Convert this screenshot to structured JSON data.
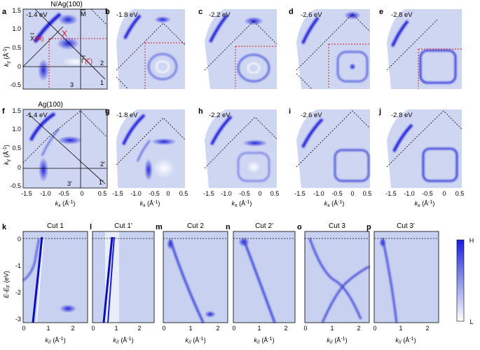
{
  "figure": {
    "row1_title": "N/Ag(100)",
    "row2_title": "Ag(100)",
    "row1": [
      {
        "label": "a",
        "energy": "-1.4 eV"
      },
      {
        "label": "b",
        "energy": "-1.8 eV"
      },
      {
        "label": "c",
        "energy": "-2.2 eV"
      },
      {
        "label": "d",
        "energy": "-2.6 eV"
      },
      {
        "label": "e",
        "energy": "-2.8 eV"
      }
    ],
    "row2": [
      {
        "label": "f",
        "energy": "-1.4 eV"
      },
      {
        "label": "g",
        "energy": "-1.8 eV"
      },
      {
        "label": "h",
        "energy": "-2.2 eV"
      },
      {
        "label": "i",
        "energy": "-2.6 eV"
      },
      {
        "label": "j",
        "energy": "-2.8 eV"
      }
    ],
    "row3": [
      {
        "label": "k",
        "cut": "Cut 1"
      },
      {
        "label": "l",
        "cut": "Cut 1'"
      },
      {
        "label": "m",
        "cut": "Cut 2"
      },
      {
        "label": "n",
        "cut": "Cut 2'"
      },
      {
        "label": "o",
        "cut": "Cut 3"
      },
      {
        "label": "p",
        "cut": "Cut 3'"
      }
    ],
    "map_axes": {
      "ky_label": "k",
      "ky_sub": "y",
      "ky_unit": " (Å",
      "kx_label": "k",
      "kx_sub": "x",
      "kx_unit": " (Å",
      "unit_exp": "-1",
      "unit_close": ")",
      "kx_ticks": [
        "-1.5",
        "-1.0",
        "-0.5",
        "0",
        "0.5"
      ],
      "ky_ticks": [
        "1.5",
        "1.0",
        "0.5",
        "0",
        "-0.5"
      ]
    },
    "cut_axes": {
      "e_label": "E-E",
      "e_sub": "F",
      "e_unit": " (eV)",
      "k_label": "k",
      "k_sub": "//",
      "k_unit": " (Å",
      "unit_exp": "-1",
      "unit_close": ")",
      "k_ticks": [
        "0",
        "1",
        "2"
      ],
      "e_ticks": [
        "0",
        "-1",
        "-2",
        "-3"
      ]
    },
    "symmetry_points": {
      "M_bar": "M",
      "X_bar": "X",
      "X_paren_open": "(",
      "X_paren_M": "M",
      "X_paren_close": ")",
      "Gamma_bar": "Γ",
      "Gamma_paren_open": "(",
      "Gamma_paren_G": "Γ",
      "Gamma_paren_close": ")",
      "X_red": "X"
    },
    "cut_numbers_row1": [
      "1",
      "2",
      "3"
    ],
    "cut_numbers_row2": [
      "1'",
      "2'",
      "3'"
    ],
    "colorbar": {
      "high": "H",
      "low": "L"
    },
    "colors": {
      "intensity_low": "#ffffff",
      "intensity_high": "#1a1fd8",
      "background": "#cfd6f2",
      "red_lines": "#d4141e"
    }
  }
}
